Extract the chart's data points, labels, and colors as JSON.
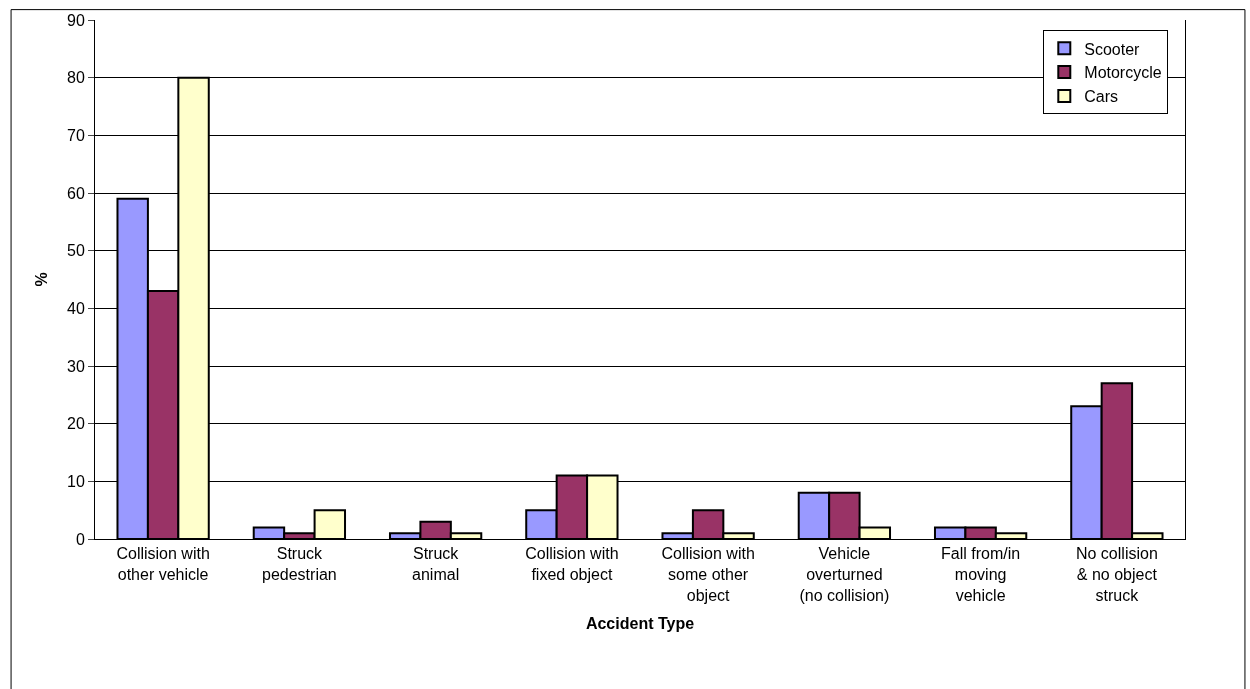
{
  "chart_data": {
    "type": "bar",
    "xlabel": "Accident Type",
    "ylabel": "%",
    "categories": [
      "Collision with\nother vehicle",
      "Struck\npedestrian",
      "Struck\nanimal",
      "Collision with\nfixed object",
      "Collision with\nsome other\nobject",
      "Vehicle\noverturned\n(no collision)",
      "Fall from/in\nmoving\nvehicle",
      "No collision\n& no object\nstruck"
    ],
    "series": [
      {
        "name": "Scooter",
        "color": "#9999ff",
        "values": [
          59,
          2,
          1,
          5,
          1,
          8,
          2,
          23
        ]
      },
      {
        "name": "Motorcycle",
        "color": "#993366",
        "values": [
          43,
          1,
          3,
          11,
          5,
          8,
          2,
          27
        ]
      },
      {
        "name": "Cars",
        "color": "#ffffcc",
        "values": [
          80,
          5,
          1,
          11,
          1,
          2,
          1,
          1
        ]
      }
    ],
    "ylim": [
      0,
      90
    ],
    "yticks": [
      0,
      10,
      20,
      30,
      40,
      50,
      60,
      70,
      80,
      90
    ],
    "grid": "y",
    "legend": "top right"
  }
}
